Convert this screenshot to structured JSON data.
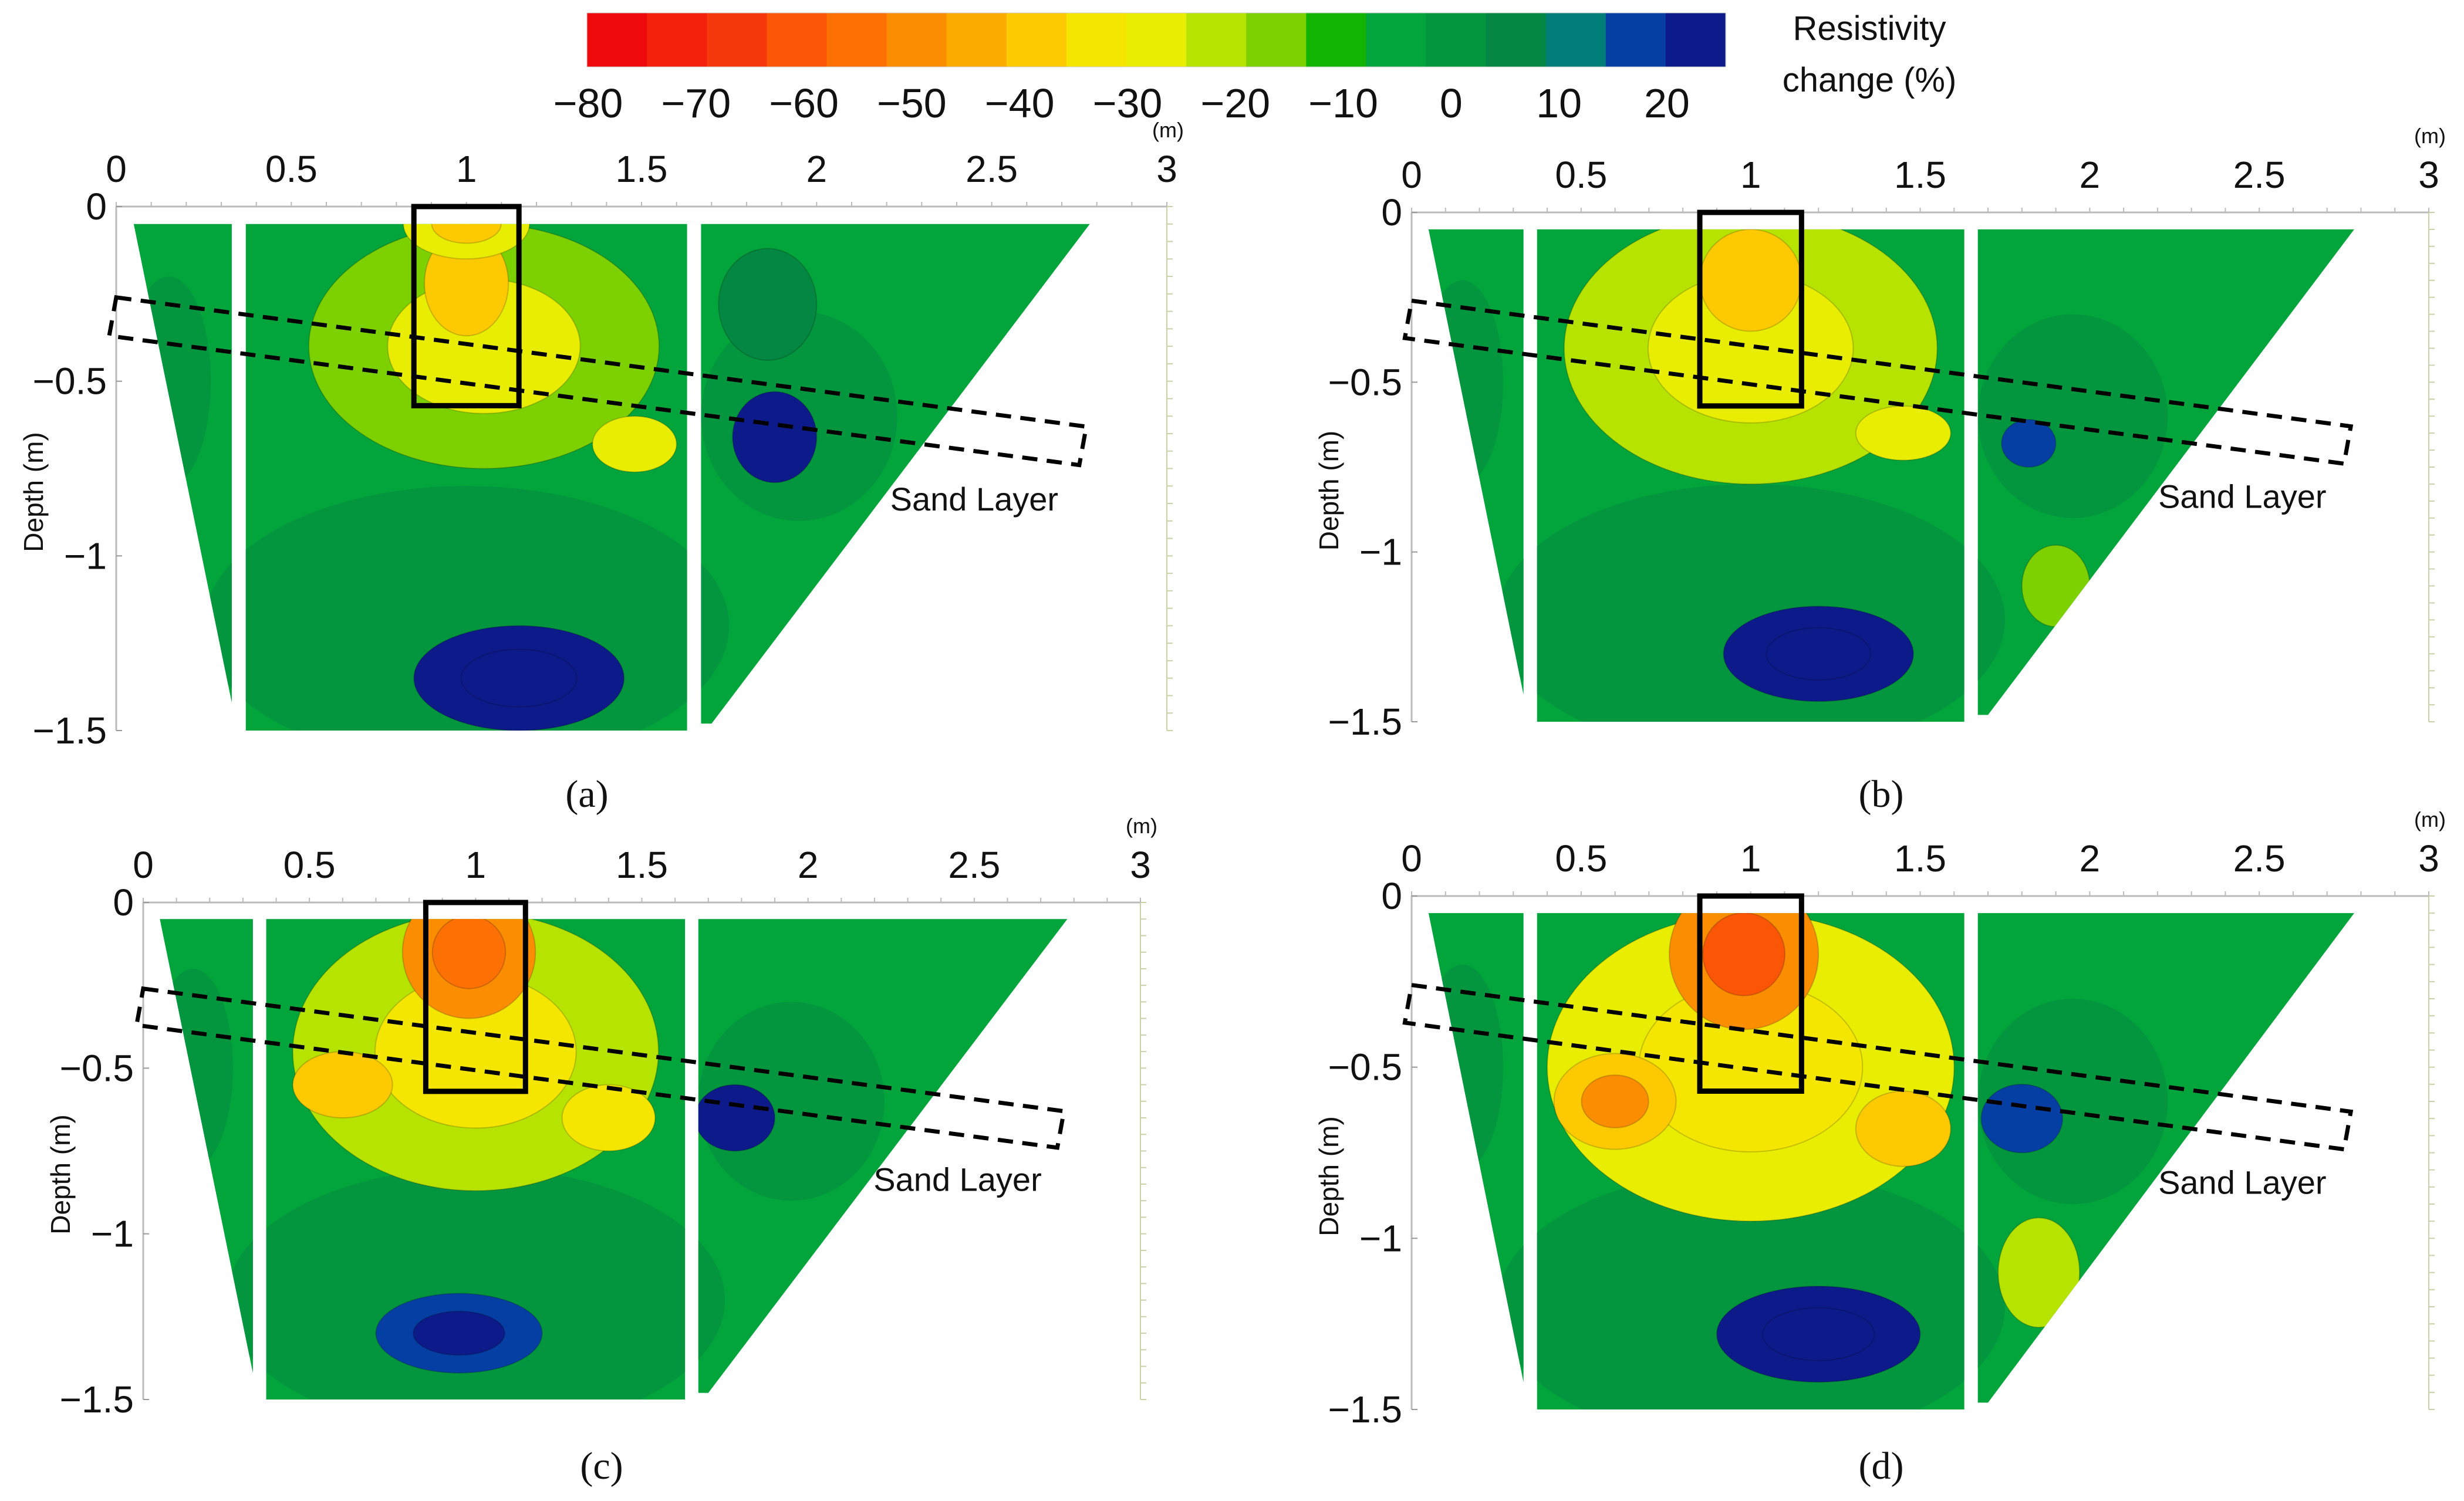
{
  "colorbar": {
    "title_line1": "Resistivity",
    "title_line2": "change (%)",
    "ticks": [
      "−80",
      "−70",
      "−60",
      "−50",
      "−40",
      "−30",
      "−20",
      "−10",
      "0",
      "10",
      "20"
    ],
    "tick_values": [
      -80,
      -70,
      -60,
      -50,
      -40,
      -30,
      -20,
      -10,
      0,
      10,
      20
    ],
    "colors": [
      "#ee0a0a",
      "#f3210c",
      "#f6390c",
      "#fb5506",
      "#fc7004",
      "#fb8e00",
      "#fbab00",
      "#fdc900",
      "#f5e600",
      "#e8ed02",
      "#b7e300",
      "#7ed100",
      "#11b501",
      "#02a53b",
      "#03963e",
      "#038743",
      "#017e79",
      "#053fa3",
      "#0d1b8a"
    ]
  },
  "chart_data": [
    {
      "type": "heatmap",
      "panel_label": "(a)",
      "xlabel": "",
      "x_unit": "(m)",
      "ylabel": "Depth (m)",
      "x_ticks": [
        "0",
        "0.5",
        "1",
        "1.5",
        "2",
        "2.5",
        "3"
      ],
      "x_tick_values": [
        0,
        0.5,
        1,
        1.5,
        2,
        2.5,
        3
      ],
      "y_ticks": [
        "0",
        "−0.5",
        "−1",
        "−1.5"
      ],
      "y_tick_values": [
        0,
        -0.5,
        -1,
        -1.5
      ],
      "xlim": [
        0,
        3
      ],
      "ylim": [
        -1.5,
        0
      ],
      "annotation": "Sand Layer",
      "anomalies": [
        {
          "x": 1.0,
          "y": -0.22,
          "rx": 0.12,
          "ry": 0.15,
          "change": -40
        },
        {
          "x": 1.0,
          "y": -0.05,
          "rx": 0.18,
          "ry": 0.1,
          "change": -30
        },
        {
          "x": 1.05,
          "y": -0.4,
          "rx": 0.5,
          "ry": 0.35,
          "change": -20
        },
        {
          "x": 1.48,
          "y": -0.68,
          "rx": 0.12,
          "ry": 0.08,
          "change": -30
        },
        {
          "x": 1.88,
          "y": -0.66,
          "rx": 0.12,
          "ry": 0.13,
          "change": 20
        },
        {
          "x": 1.15,
          "y": -1.35,
          "rx": 0.3,
          "ry": 0.15,
          "change": 25
        },
        {
          "x": 1.86,
          "y": -0.28,
          "rx": 0.14,
          "ry": 0.16,
          "change": 5
        }
      ]
    },
    {
      "type": "heatmap",
      "panel_label": "(b)",
      "xlabel": "",
      "x_unit": "(m)",
      "ylabel": "Depth (m)",
      "x_ticks": [
        "0",
        "0.5",
        "1",
        "1.5",
        "2",
        "2.5",
        "3"
      ],
      "x_tick_values": [
        0,
        0.5,
        1,
        1.5,
        2,
        2.5,
        3
      ],
      "y_ticks": [
        "0",
        "−0.5",
        "−1",
        "−1.5"
      ],
      "y_tick_values": [
        0,
        -0.5,
        -1,
        -1.5
      ],
      "xlim": [
        0,
        3
      ],
      "ylim": [
        -1.5,
        0
      ],
      "annotation": "Sand Layer",
      "anomalies": [
        {
          "x": 1.0,
          "y": -0.2,
          "rx": 0.15,
          "ry": 0.15,
          "change": -40
        },
        {
          "x": 1.0,
          "y": -0.4,
          "rx": 0.55,
          "ry": 0.4,
          "change": -22
        },
        {
          "x": 1.45,
          "y": -0.65,
          "rx": 0.14,
          "ry": 0.08,
          "change": -30
        },
        {
          "x": 1.82,
          "y": -0.68,
          "rx": 0.08,
          "ry": 0.07,
          "change": 15
        },
        {
          "x": 1.2,
          "y": -1.3,
          "rx": 0.28,
          "ry": 0.14,
          "change": 20
        },
        {
          "x": 1.9,
          "y": -1.1,
          "rx": 0.1,
          "ry": 0.12,
          "change": -18
        }
      ]
    },
    {
      "type": "heatmap",
      "panel_label": "(c)",
      "xlabel": "",
      "x_unit": "(m)",
      "ylabel": "Depth (m)",
      "x_ticks": [
        "0",
        "0.5",
        "1",
        "1.5",
        "2",
        "2.5",
        "3"
      ],
      "x_tick_values": [
        0,
        0.5,
        1,
        1.5,
        2,
        2.5,
        3
      ],
      "y_ticks": [
        "0",
        "−0.5",
        "−1",
        "−1.5"
      ],
      "y_tick_values": [
        0,
        -0.5,
        -1,
        -1.5
      ],
      "xlim": [
        0,
        3
      ],
      "ylim": [
        -1.5,
        0
      ],
      "annotation": "Sand Layer",
      "anomalies": [
        {
          "x": 0.98,
          "y": -0.15,
          "rx": 0.2,
          "ry": 0.2,
          "change": -50
        },
        {
          "x": 0.6,
          "y": -0.55,
          "rx": 0.15,
          "ry": 0.1,
          "change": -40
        },
        {
          "x": 1.0,
          "y": -0.45,
          "rx": 0.55,
          "ry": 0.42,
          "change": -25
        },
        {
          "x": 1.4,
          "y": -0.65,
          "rx": 0.14,
          "ry": 0.1,
          "change": -38
        },
        {
          "x": 1.78,
          "y": -0.65,
          "rx": 0.12,
          "ry": 0.1,
          "change": 18
        },
        {
          "x": 0.95,
          "y": -1.3,
          "rx": 0.25,
          "ry": 0.12,
          "change": 15
        }
      ]
    },
    {
      "type": "heatmap",
      "panel_label": "(d)",
      "xlabel": "",
      "x_unit": "(m)",
      "ylabel": "Depth (m)",
      "x_ticks": [
        "0",
        "0.5",
        "1",
        "1.5",
        "2",
        "2.5",
        "3"
      ],
      "x_tick_values": [
        0,
        0.5,
        1,
        1.5,
        2,
        2.5,
        3
      ],
      "y_ticks": [
        "0",
        "−0.5",
        "−1",
        "−1.5"
      ],
      "y_tick_values": [
        0,
        -0.5,
        -1,
        -1.5
      ],
      "xlim": [
        0,
        3
      ],
      "ylim": [
        -1.5,
        0
      ],
      "annotation": "Sand Layer",
      "anomalies": [
        {
          "x": 0.98,
          "y": -0.17,
          "rx": 0.22,
          "ry": 0.22,
          "change": -55
        },
        {
          "x": 0.6,
          "y": -0.6,
          "rx": 0.18,
          "ry": 0.14,
          "change": -40
        },
        {
          "x": 1.0,
          "y": -0.5,
          "rx": 0.6,
          "ry": 0.45,
          "change": -28
        },
        {
          "x": 1.45,
          "y": -0.68,
          "rx": 0.14,
          "ry": 0.11,
          "change": -40
        },
        {
          "x": 1.8,
          "y": -0.65,
          "rx": 0.12,
          "ry": 0.1,
          "change": 15
        },
        {
          "x": 1.2,
          "y": -1.28,
          "rx": 0.3,
          "ry": 0.14,
          "change": 20
        },
        {
          "x": 1.85,
          "y": -1.1,
          "rx": 0.12,
          "ry": 0.16,
          "change": -25
        }
      ]
    }
  ]
}
